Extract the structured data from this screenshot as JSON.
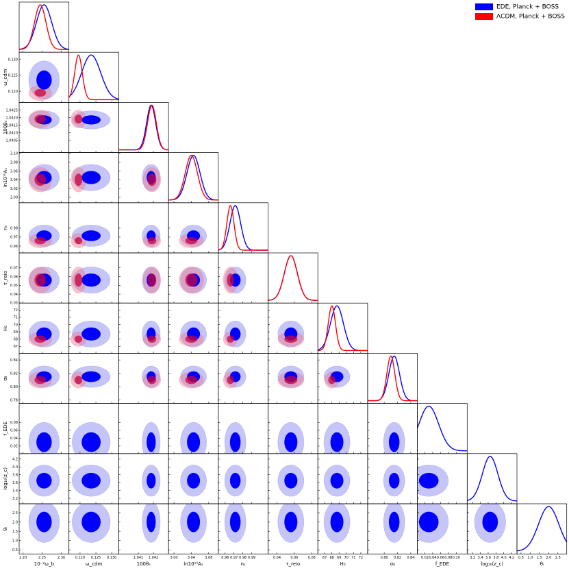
{
  "chart_data": {
    "type": "corner",
    "series": [
      {
        "name": "EDE, Planck + BOSS",
        "color": "#0000ff",
        "means": [
          2.255,
          0.1235,
          1.04185,
          3.045,
          0.9715,
          0.056,
          68.7,
          0.815,
          0.03,
          3.65,
          2.0
        ],
        "sigmas": [
          0.02,
          0.003,
          0.0003,
          0.015,
          0.006,
          0.0075,
          0.9,
          0.008,
          0.025,
          0.2,
          0.55
        ]
      },
      {
        "name": "ΛCDM, Planck + BOSS",
        "color": "#ff0000",
        "means": [
          2.245,
          0.1195,
          1.0419,
          3.04,
          0.966,
          0.056,
          68.0,
          0.81,
          null,
          null,
          null
        ],
        "sigmas": [
          0.015,
          0.0012,
          0.00029,
          0.014,
          0.004,
          0.0075,
          0.5,
          0.006,
          null,
          null,
          null
        ]
      }
    ],
    "parameters": [
      {
        "label": "10⁻²ω_b",
        "lim": [
          2.19,
          2.32
        ],
        "xticks": [
          {
            "value": 2.2,
            "label": "2.20"
          },
          2.25,
          {
            "value": 2.3,
            "label": "2.30"
          }
        ],
        "yticks": []
      },
      {
        "label": "ω_cdm",
        "lim": [
          0.1165,
          0.1322
        ],
        "xticks": [
          {
            "value": 0.12,
            "label": "0.120"
          },
          0.125,
          {
            "value": 0.13,
            "label": "0.130"
          }
        ],
        "yticks": [
          {
            "value": 0.12,
            "label": "0.120"
          },
          0.125,
          {
            "value": 0.13,
            "label": "0.130"
          }
        ]
      },
      {
        "label": "100θₛ",
        "lim": [
          1.0397,
          1.043
        ],
        "xticks": [
          1.041,
          1.042
        ],
        "yticks": [
          1.0405,
          {
            "value": 1.041,
            "label": "1.0410"
          },
          1.0415,
          {
            "value": 1.042,
            "label": "1.0420"
          },
          1.0425
        ]
      },
      {
        "label": "ln10¹⁰Aₛ",
        "lim": [
          2.9875,
          3.102
        ],
        "xticks": [
          {
            "value": 3,
            "label": "3.00"
          },
          3.04,
          3.08
        ],
        "yticks": [
          {
            "value": 3,
            "label": "3.00"
          },
          3.02,
          3.04,
          3.06,
          3.08,
          {
            "value": 3.1,
            "label": "3.10"
          }
        ]
      },
      {
        "label": "nₛ",
        "lim": [
          0.9523,
          1.0085
        ],
        "xticks": [
          0.96,
          0.97,
          0.98,
          0.99
        ],
        "yticks": [
          0.96,
          0.97,
          0.98
        ]
      },
      {
        "label": "τ_reio",
        "lim": [
          0.0298,
          0.087
        ],
        "xticks": [
          0.04,
          0.06,
          0.08
        ],
        "yticks": [
          0.03,
          0.04,
          0.05,
          0.06,
          0.07
        ]
      },
      {
        "label": "H₀",
        "lim": [
          66.06,
          72.95
        ],
        "xticks": [
          67,
          68,
          69,
          70,
          71,
          72
        ],
        "yticks": [
          67,
          68,
          69,
          70,
          71,
          72
        ]
      },
      {
        "label": "σ₈",
        "lim": [
          0.775,
          0.85
        ],
        "xticks": [
          {
            "value": 0.8,
            "label": "0.80"
          },
          0.82,
          0.84
        ],
        "yticks": [
          0.78,
          {
            "value": 0.8,
            "label": "0.80"
          },
          0.82,
          0.84
        ]
      },
      {
        "label": "f_EDE",
        "lim": [
          0.001,
          0.128
        ],
        "xticks": [
          0.02,
          0.04,
          0.06,
          0.08,
          {
            "value": 0.1,
            "label": "0.10"
          }
        ],
        "yticks": [
          0.02,
          0.04,
          0.06,
          0.08
        ]
      },
      {
        "label": "log₁₀(z_c)",
        "lim": [
          3.06,
          4.34
        ],
        "xticks": [
          3.2,
          3.4,
          3.6,
          3.8,
          {
            "value": 4,
            "label": "4.0"
          },
          4.2
        ],
        "yticks": [
          3.2,
          3.4,
          3.6,
          3.8,
          {
            "value": 4,
            "label": "4.0"
          },
          4.2
        ]
      },
      {
        "label": "θᵢ",
        "lim": [
          0.28,
          2.98
        ],
        "xticks": [
          0.5,
          {
            "value": 1,
            "label": "1.0"
          },
          1.5,
          {
            "value": 2,
            "label": "2.0"
          },
          2.5
        ],
        "yticks": [
          0.5,
          {
            "value": 1,
            "label": "1.0"
          },
          1.5,
          {
            "value": 2,
            "label": "2.0"
          },
          2.5
        ]
      }
    ]
  }
}
